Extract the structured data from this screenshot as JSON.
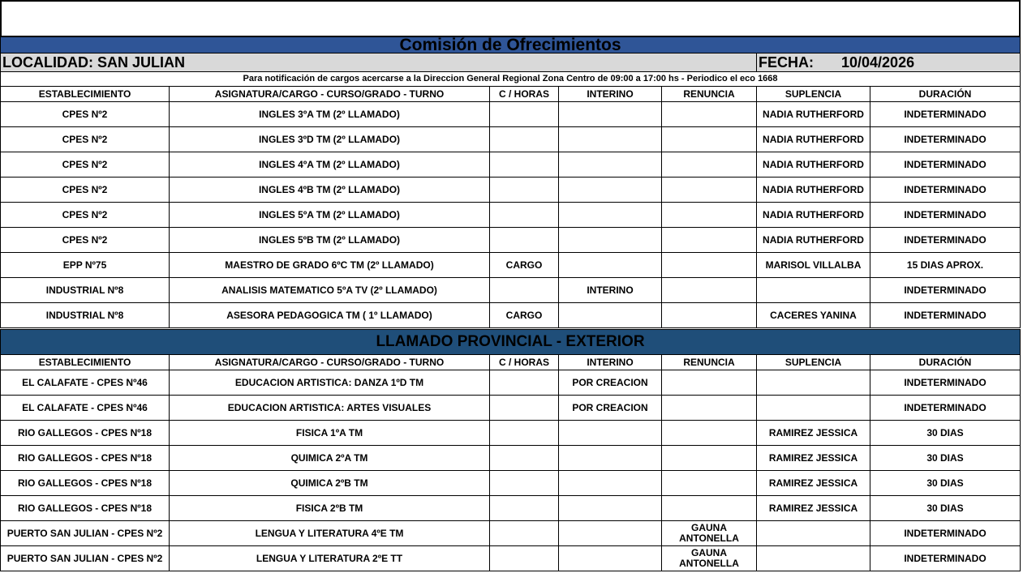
{
  "header": {
    "title": "Comisión de Ofrecimientos",
    "localidad": "LOCALIDAD: SAN JULIAN",
    "fecha_label": "FECHA:",
    "fecha": "10/04/2026",
    "notice": "Para notificación de cargos acercarse a la Direccion General Regional Zona Centro de 09:00 a 17:00 hs - Periodico el eco 1668",
    "colors": {
      "title_bg": "#2F5597",
      "section_bg": "#1F4E79",
      "localidad_bg": "#D9D9D9"
    }
  },
  "columns": [
    "ESTABLECIMIENTO",
    "ASIGNATURA/CARGO - CURSO/GRADO - TURNO",
    "C / HORAS",
    "INTERINO",
    "RENUNCIA",
    "SUPLENCIA",
    "DURACIÓN"
  ],
  "local_rows": [
    [
      "CPES Nº2",
      "INGLES 3ºA TM (2º LLAMADO)",
      "",
      "",
      "",
      "NADIA RUTHERFORD",
      "INDETERMINADO"
    ],
    [
      "CPES Nº2",
      "INGLES 3ºD TM (2º LLAMADO)",
      "",
      "",
      "",
      "NADIA RUTHERFORD",
      "INDETERMINADO"
    ],
    [
      "CPES Nº2",
      "INGLES 4ºA TM (2º LLAMADO)",
      "",
      "",
      "",
      "NADIA RUTHERFORD",
      "INDETERMINADO"
    ],
    [
      "CPES Nº2",
      "INGLES 4ºB TM (2º LLAMADO)",
      "",
      "",
      "",
      "NADIA RUTHERFORD",
      "INDETERMINADO"
    ],
    [
      "CPES Nº2",
      "INGLES 5ºA TM (2º LLAMADO)",
      "",
      "",
      "",
      "NADIA RUTHERFORD",
      "INDETERMINADO"
    ],
    [
      "CPES Nº2",
      "INGLES 5ºB TM (2º LLAMADO)",
      "",
      "",
      "",
      "NADIA RUTHERFORD",
      "INDETERMINADO"
    ],
    [
      "EPP Nº75",
      "MAESTRO DE GRADO 6ºC TM (2º LLAMADO)",
      "CARGO",
      "",
      "",
      "MARISOL VILLALBA",
      "15 DIAS APROX."
    ],
    [
      "INDUSTRIAL Nº8",
      "ANALISIS MATEMATICO 5ºA TV (2º LLAMADO)",
      "",
      "INTERINO",
      "",
      "",
      "INDETERMINADO"
    ],
    [
      "INDUSTRIAL Nº8",
      "ASESORA PEDAGOGICA TM ( 1º LLAMADO)",
      "CARGO",
      "",
      "",
      "CACERES YANINA",
      "INDETERMINADO"
    ]
  ],
  "section2_title": "LLAMADO PROVINCIAL - EXTERIOR",
  "exterior_rows": [
    [
      "EL CALAFATE - CPES Nº46",
      "EDUCACION ARTISTICA: DANZA 1ºD TM",
      "",
      "POR CREACION",
      "",
      "",
      "INDETERMINADO"
    ],
    [
      "EL CALAFATE - CPES Nº46",
      "EDUCACION ARTISTICA: ARTES VISUALES",
      "",
      "POR CREACION",
      "",
      "",
      "INDETERMINADO"
    ],
    [
      "RIO GALLEGOS - CPES Nº18",
      "FISICA 1ºA TM",
      "",
      "",
      "",
      "RAMIREZ JESSICA",
      "30 DIAS"
    ],
    [
      "RIO GALLEGOS - CPES Nº18",
      "QUIMICA 2ºA TM",
      "",
      "",
      "",
      "RAMIREZ JESSICA",
      "30 DIAS"
    ],
    [
      "RIO GALLEGOS - CPES Nº18",
      "QUIMICA 2ºB TM",
      "",
      "",
      "",
      "RAMIREZ JESSICA",
      "30 DIAS"
    ],
    [
      "RIO GALLEGOS - CPES Nº18",
      "FISICA 2ºB TM",
      "",
      "",
      "",
      "RAMIREZ JESSICA",
      "30 DIAS"
    ],
    [
      "PUERTO SAN JULIAN - CPES Nº2",
      "LENGUA Y LITERATURA 4ºE TM",
      "",
      "",
      "GAUNA ANTONELLA",
      "",
      "INDETERMINADO"
    ],
    [
      "PUERTO SAN JULIAN - CPES Nº2",
      "LENGUA Y LITERATURA 2ºE TT",
      "",
      "",
      "GAUNA ANTONELLA",
      "",
      "INDETERMINADO"
    ]
  ]
}
